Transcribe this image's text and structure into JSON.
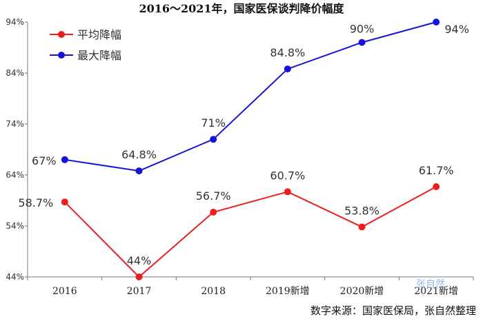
{
  "title": "2016～2021年，国家医保谈判降价幅度",
  "source": "数字来源：国家医保局，张自然整理",
  "watermark": "张自然",
  "colors": {
    "series_1": "#ee1c1c",
    "series_2": "#1414d8",
    "axis": "#777777"
  },
  "chart_data": {
    "type": "line",
    "title": "2016～2021年，国家医保谈判降价幅度",
    "categories": [
      "2016",
      "2017",
      "2018",
      "2019新增",
      "2020新增",
      "2021新增"
    ],
    "ylim": [
      44,
      94
    ],
    "y_ticks": [
      "44%",
      "54%",
      "64%",
      "74%",
      "84%",
      "94%"
    ],
    "y_tick_values": [
      44,
      54,
      64,
      74,
      84,
      94
    ],
    "grid": false,
    "legend_position": "top-left",
    "series": [
      {
        "name": "平均降幅",
        "values": [
          58.7,
          44,
          56.7,
          60.7,
          53.8,
          61.7
        ],
        "labels": [
          "58.7%",
          "44%",
          "56.7%",
          "60.7%",
          "53.8%",
          "61.7%"
        ],
        "color": "#ee1c1c"
      },
      {
        "name": "最大降幅",
        "values": [
          67,
          64.8,
          71,
          84.8,
          90,
          94
        ],
        "labels": [
          "67%",
          "64.8%",
          "71%",
          "84.8%",
          "90%",
          "94%"
        ],
        "color": "#1414d8"
      }
    ]
  }
}
